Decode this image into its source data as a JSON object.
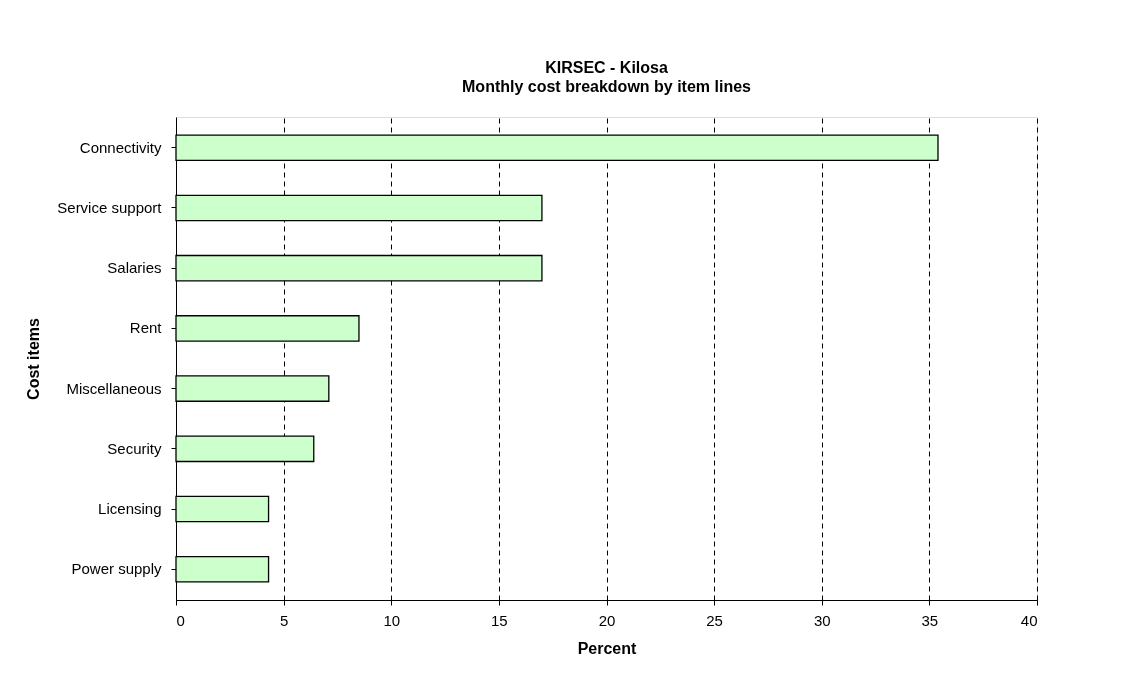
{
  "chart_data": {
    "type": "bar",
    "orientation": "horizontal",
    "title": "KIRSEC - Kilosa",
    "subtitle": "Monthly cost breakdown by item lines",
    "xlabel": "Percent",
    "ylabel": "Cost items",
    "categories": [
      "Connectivity",
      "Service support",
      "Salaries",
      "Rent",
      "Miscellaneous",
      "Security",
      "Licensing",
      "Power supply"
    ],
    "values": [
      35.4,
      17.0,
      17.0,
      8.5,
      7.1,
      6.4,
      4.3,
      4.3
    ],
    "color": "#ccffcc",
    "xlim": [
      0,
      40
    ],
    "xticks": [
      0,
      5,
      10,
      15,
      20,
      25,
      30,
      35,
      40
    ],
    "grid": "x"
  }
}
